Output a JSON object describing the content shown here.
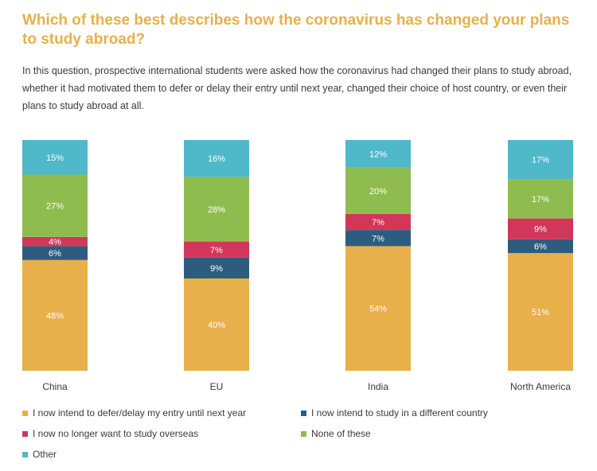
{
  "title": "Which of these best describes how the coronavirus has changed your plans to study abroad?",
  "intro": "In this question, prospective international students were asked how the coronavirus had changed their plans to study abroad, whether it had motivated them to defer or delay their entry until next year, changed their choice of host country, or even their plans to study abroad at all.",
  "chart_data": {
    "type": "bar",
    "stacked": true,
    "categories": [
      "China",
      "EU",
      "India",
      "North America"
    ],
    "series": [
      {
        "name": "I now intend to defer/delay my entry until next year",
        "color": "#e8b04a",
        "values": [
          48,
          40,
          54,
          51
        ]
      },
      {
        "name": "I now intend to study in a different country",
        "color": "#2e5c80",
        "values": [
          6,
          9,
          7,
          6
        ]
      },
      {
        "name": "I now no longer want to study overseas",
        "color": "#d2365a",
        "values": [
          4,
          7,
          7,
          9
        ]
      },
      {
        "name": "None of these",
        "color": "#8fbc4f",
        "values": [
          27,
          28,
          20,
          17
        ]
      },
      {
        "name": "Other",
        "color": "#4fb8c9",
        "values": [
          15,
          16,
          12,
          17
        ]
      }
    ],
    "data_labels": [
      [
        "48%",
        "40%",
        "54%",
        "51%"
      ],
      [
        "6%",
        "9%",
        "7%",
        "6%"
      ],
      [
        "4%",
        "7%",
        "7%",
        "9%"
      ],
      [
        "27%",
        "28%",
        "20%",
        "17%"
      ],
      [
        "15%",
        "16%",
        "12%",
        "17%"
      ]
    ],
    "legend_position": "bottom",
    "grid": false
  }
}
